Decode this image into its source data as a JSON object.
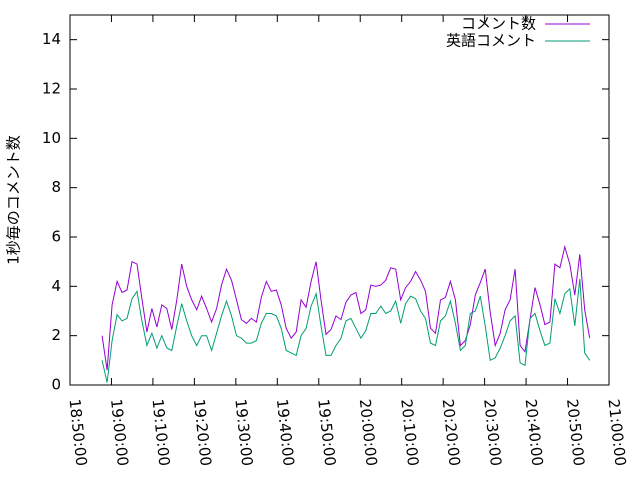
{
  "chart_data": {
    "type": "line",
    "ylabel": "1秒毎のコメント数",
    "x": [
      "18:57:45",
      "18:58:57",
      "19:00:09",
      "19:01:21",
      "19:02:33",
      "19:03:45",
      "19:04:57",
      "19:06:09",
      "19:07:21",
      "19:08:33",
      "19:09:45",
      "19:10:57",
      "19:12:09",
      "19:13:21",
      "19:14:33",
      "19:15:45",
      "19:16:57",
      "19:18:09",
      "19:19:21",
      "19:20:33",
      "19:21:45",
      "19:22:57",
      "19:24:09",
      "19:25:21",
      "19:26:33",
      "19:27:45",
      "19:28:57",
      "19:30:09",
      "19:31:21",
      "19:32:33",
      "19:33:45",
      "19:34:57",
      "19:36:09",
      "19:37:21",
      "19:38:33",
      "19:39:45",
      "19:40:57",
      "19:42:09",
      "19:43:21",
      "19:44:33",
      "19:45:45",
      "19:46:57",
      "19:48:09",
      "19:49:21",
      "19:50:33",
      "19:51:45",
      "19:52:57",
      "19:54:09",
      "19:55:21",
      "19:56:33",
      "19:57:45",
      "19:58:57",
      "20:00:09",
      "20:01:21",
      "20:02:33",
      "20:03:45",
      "20:04:57",
      "20:06:09",
      "20:07:21",
      "20:08:33",
      "20:09:45",
      "20:10:57",
      "20:12:09",
      "20:13:21",
      "20:14:33",
      "20:15:45",
      "20:16:57",
      "20:18:09",
      "20:19:21",
      "20:20:33",
      "20:21:45",
      "20:22:57",
      "20:24:09",
      "20:25:21",
      "20:26:33",
      "20:27:45",
      "20:28:57",
      "20:30:09",
      "20:31:21",
      "20:32:33",
      "20:33:45",
      "20:34:57",
      "20:36:09",
      "20:37:21",
      "20:38:33",
      "20:39:45",
      "20:40:57",
      "20:42:09",
      "20:43:21",
      "20:44:33",
      "20:45:45",
      "20:46:57",
      "20:48:09",
      "20:49:21",
      "20:50:33",
      "20:51:45",
      "20:52:57",
      "20:54:09",
      "20:55:21"
    ],
    "series": [
      {
        "name": "コメント数",
        "color": "#9400d3",
        "values": [
          2.0,
          0.6,
          3.25,
          4.2,
          3.75,
          3.85,
          5.0,
          4.9,
          3.5,
          2.15,
          3.1,
          2.35,
          3.25,
          3.1,
          2.25,
          3.45,
          4.9,
          4.0,
          3.45,
          3.05,
          3.6,
          3.1,
          2.55,
          3.1,
          4.05,
          4.7,
          4.25,
          3.45,
          2.65,
          2.5,
          2.7,
          2.55,
          3.55,
          4.2,
          3.8,
          3.85,
          3.25,
          2.3,
          1.9,
          2.15,
          3.45,
          3.15,
          4.2,
          5.0,
          3.45,
          2.05,
          2.25,
          2.8,
          2.65,
          3.35,
          3.65,
          3.75,
          2.9,
          3.05,
          4.05,
          4.0,
          4.05,
          4.25,
          4.75,
          4.7,
          3.45,
          3.95,
          4.2,
          4.6,
          4.25,
          3.8,
          2.3,
          2.1,
          3.45,
          3.55,
          4.2,
          3.45,
          1.6,
          1.8,
          2.45,
          3.65,
          4.15,
          4.7,
          2.95,
          1.6,
          2.1,
          3.05,
          3.45,
          4.7,
          1.6,
          1.35,
          2.65,
          3.95,
          3.25,
          2.45,
          2.55,
          4.9,
          4.75,
          5.6,
          4.9,
          3.65,
          5.3,
          3.05,
          1.9
        ]
      },
      {
        "name": "英語コメント",
        "color": "#009e73",
        "values": [
          1.0,
          0.1,
          1.8,
          2.85,
          2.6,
          2.7,
          3.5,
          3.8,
          2.6,
          1.6,
          2.1,
          1.5,
          2.0,
          1.5,
          1.4,
          2.4,
          3.3,
          2.6,
          2.0,
          1.6,
          2.0,
          2.0,
          1.4,
          2.1,
          2.8,
          3.4,
          2.8,
          2.0,
          1.9,
          1.7,
          1.7,
          1.8,
          2.5,
          2.9,
          2.9,
          2.8,
          2.3,
          1.4,
          1.3,
          1.2,
          2.0,
          2.3,
          3.2,
          3.7,
          2.4,
          1.2,
          1.2,
          1.6,
          1.9,
          2.6,
          2.7,
          2.3,
          1.9,
          2.2,
          2.9,
          2.9,
          3.2,
          2.9,
          3.0,
          3.4,
          2.5,
          3.3,
          3.6,
          3.5,
          3.0,
          2.7,
          1.7,
          1.6,
          2.6,
          2.8,
          3.4,
          2.5,
          1.4,
          1.6,
          2.9,
          3.0,
          3.6,
          2.4,
          1.0,
          1.1,
          1.5,
          2.0,
          2.6,
          2.8,
          0.9,
          0.8,
          2.7,
          2.9,
          2.2,
          1.6,
          1.7,
          3.5,
          2.9,
          3.7,
          3.9,
          2.4,
          4.3,
          1.3,
          1.0
        ]
      }
    ],
    "xlim": [
      "18:50:00",
      "21:00:00"
    ],
    "xticks": [
      "18:50:00",
      "19:00:00",
      "19:10:00",
      "19:20:00",
      "19:30:00",
      "19:40:00",
      "19:50:00",
      "20:00:00",
      "20:10:00",
      "20:20:00",
      "20:30:00",
      "20:40:00",
      "20:50:00",
      "21:00:00"
    ],
    "ylim": [
      0,
      15
    ],
    "yticks": [
      0,
      2,
      4,
      6,
      8,
      10,
      12,
      14
    ],
    "legend": "top-right"
  }
}
